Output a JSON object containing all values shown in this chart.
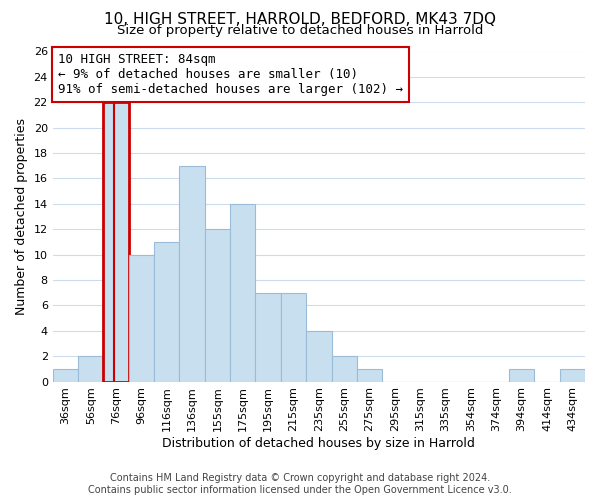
{
  "title": "10, HIGH STREET, HARROLD, BEDFORD, MK43 7DQ",
  "subtitle": "Size of property relative to detached houses in Harrold",
  "xlabel": "Distribution of detached houses by size in Harrold",
  "ylabel": "Number of detached properties",
  "bar_labels": [
    "36sqm",
    "56sqm",
    "76sqm",
    "96sqm",
    "116sqm",
    "136sqm",
    "155sqm",
    "175sqm",
    "195sqm",
    "215sqm",
    "235sqm",
    "255sqm",
    "275sqm",
    "295sqm",
    "315sqm",
    "335sqm",
    "354sqm",
    "374sqm",
    "394sqm",
    "414sqm",
    "434sqm"
  ],
  "bar_values": [
    1,
    2,
    22,
    10,
    11,
    17,
    12,
    14,
    7,
    7,
    4,
    2,
    1,
    0,
    0,
    0,
    0,
    0,
    1,
    0,
    1
  ],
  "bar_color": "#c8dff0",
  "bar_edge_color": "#9abcd8",
  "highlight_bar_index": 2,
  "highlight_bar_color": "#cc0000",
  "highlight_line_color": "#cc0000",
  "annotation_title": "10 HIGH STREET: 84sqm",
  "annotation_line1": "← 9% of detached houses are smaller (10)",
  "annotation_line2": "91% of semi-detached houses are larger (102) →",
  "annotation_box_color": "#ffffff",
  "annotation_box_edge_color": "#cc0000",
  "ylim": [
    0,
    26
  ],
  "yticks": [
    0,
    2,
    4,
    6,
    8,
    10,
    12,
    14,
    16,
    18,
    20,
    22,
    24,
    26
  ],
  "footer_line1": "Contains HM Land Registry data © Crown copyright and database right 2024.",
  "footer_line2": "Contains public sector information licensed under the Open Government Licence v3.0.",
  "bg_color": "#ffffff",
  "grid_color": "#ccdcec",
  "title_fontsize": 11,
  "subtitle_fontsize": 9.5,
  "axis_label_fontsize": 9,
  "tick_fontsize": 8,
  "annotation_fontsize": 9,
  "footer_fontsize": 7
}
